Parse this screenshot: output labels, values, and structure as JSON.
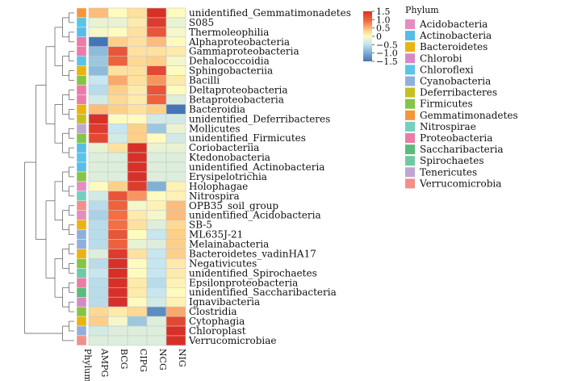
{
  "chart_data": {
    "type": "heatmap",
    "columns": [
      "AMPG",
      "BCG",
      "CIPG",
      "NCG",
      "NIG"
    ],
    "annotation_label": "Phylum",
    "rows": [
      {
        "label": "unidentified_Gemmatimonadetes",
        "phylum": "Gemmatimonadetes",
        "values": [
          0.6,
          0.0,
          0.3,
          1.5,
          0.0
        ]
      },
      {
        "label": "S085",
        "phylum": "Chloroflexi",
        "values": [
          -0.2,
          -0.2,
          0.2,
          1.4,
          -0.2
        ]
      },
      {
        "label": "Thermoleophilia",
        "phylum": "Actinobacteria",
        "values": [
          -0.1,
          0.0,
          0.3,
          1.2,
          -0.1
        ]
      },
      {
        "label": "Alphaproteobacteria",
        "phylum": "Proteobacteria",
        "values": [
          -1.6,
          0.5,
          0.3,
          0.6,
          0.0
        ]
      },
      {
        "label": "Gammaproteobacteria",
        "phylum": "Proteobacteria",
        "values": [
          -0.9,
          1.2,
          0.3,
          0.3,
          0.2
        ]
      },
      {
        "label": "Dehalococcoidia",
        "phylum": "Chloroflexi",
        "values": [
          -0.8,
          1.1,
          0.4,
          0.5,
          -0.1
        ]
      },
      {
        "label": "Sphingobacteriia",
        "phylum": "Bacteroidetes",
        "values": [
          -0.9,
          0.3,
          0.3,
          1.3,
          0.0
        ]
      },
      {
        "label": "Bacilli",
        "phylum": "Firmicutes",
        "values": [
          -0.5,
          0.7,
          0.3,
          0.8,
          0.2
        ]
      },
      {
        "label": "Deltaproteobacteria",
        "phylum": "Proteobacteria",
        "values": [
          -0.6,
          0.5,
          0.2,
          1.2,
          0.0
        ]
      },
      {
        "label": "Betaproteobacteria",
        "phylum": "Proteobacteria",
        "values": [
          -0.4,
          0.4,
          0.2,
          1.1,
          -0.3
        ]
      },
      {
        "label": "Bacteroidia",
        "phylum": "Bacteroidetes",
        "values": [
          0.6,
          0.5,
          0.3,
          0.5,
          -1.7
        ]
      },
      {
        "label": "unidentified_Deferribacteres",
        "phylum": "Deferribacteres",
        "values": [
          1.6,
          0.0,
          0.0,
          -0.4,
          -0.4
        ]
      },
      {
        "label": "Mollicutes",
        "phylum": "Tenericutes",
        "values": [
          1.4,
          -0.5,
          0.5,
          -0.8,
          -0.2
        ]
      },
      {
        "label": "unidentified_Firmicutes",
        "phylum": "Firmicutes",
        "values": [
          1.3,
          -0.4,
          0.5,
          0.0,
          -0.4
        ]
      },
      {
        "label": "Coriobacteriia",
        "phylum": "Actinobacteria",
        "values": [
          -0.2,
          0.3,
          1.5,
          -0.2,
          -0.2
        ]
      },
      {
        "label": "Ktedonobacteria",
        "phylum": "Chloroflexi",
        "values": [
          -0.3,
          -0.3,
          1.6,
          -0.3,
          -0.3
        ]
      },
      {
        "label": "unidentified_Actinobacteria",
        "phylum": "Actinobacteria",
        "values": [
          -0.3,
          -0.3,
          1.6,
          -0.3,
          -0.3
        ]
      },
      {
        "label": "Erysipelotrichia",
        "phylum": "Firmicutes",
        "values": [
          -0.3,
          -0.3,
          1.6,
          -0.3,
          -0.3
        ]
      },
      {
        "label": "Holophagae",
        "phylum": "Acidobacteria",
        "values": [
          0.0,
          0.5,
          1.4,
          -1.0,
          0.1
        ]
      },
      {
        "label": "Nitrospira",
        "phylum": "Nitrospirae",
        "values": [
          -0.4,
          1.2,
          0.8,
          0.0,
          0.1
        ]
      },
      {
        "label": "OPB35_soil_group",
        "phylum": "Verrucomicrobia",
        "values": [
          -0.6,
          1.1,
          -0.1,
          0.1,
          0.6
        ]
      },
      {
        "label": "unidentified_Acidobacteria",
        "phylum": "Acidobacteria",
        "values": [
          -0.7,
          1.0,
          0.2,
          -0.1,
          0.6
        ]
      },
      {
        "label": "SB-5",
        "phylum": "Bacteroidetes",
        "values": [
          -0.6,
          1.0,
          0.3,
          -0.3,
          0.4
        ]
      },
      {
        "label": "ML635J-21",
        "phylum": "Cyanobacteria",
        "values": [
          -0.6,
          1.2,
          0.0,
          -0.5,
          0.5
        ]
      },
      {
        "label": "Melainabacteria",
        "phylum": "Cyanobacteria",
        "values": [
          -0.6,
          1.1,
          -0.2,
          -0.3,
          0.5
        ]
      },
      {
        "label": "Bacteroidetes_vadinHA17",
        "phylum": "Bacteroidetes",
        "values": [
          -0.3,
          1.4,
          0.3,
          -0.5,
          0.5
        ]
      },
      {
        "label": "Negativicutes",
        "phylum": "Firmicutes",
        "values": [
          -0.6,
          1.5,
          0.0,
          -0.5,
          0.2
        ]
      },
      {
        "label": "unidentified_Spirochaetes",
        "phylum": "Spirochaetes",
        "values": [
          -0.5,
          1.5,
          0.0,
          -0.5,
          0.2
        ]
      },
      {
        "label": "Epsilonproteobacteria",
        "phylum": "Proteobacteria",
        "values": [
          -0.6,
          1.5,
          0.2,
          -0.6,
          0.1
        ]
      },
      {
        "label": "unidentified_Saccharibacteria",
        "phylum": "Saccharibacteria",
        "values": [
          -0.6,
          1.5,
          0.2,
          -0.5,
          0.0
        ]
      },
      {
        "label": "Ignavibacteria",
        "phylum": "Chlorobi",
        "values": [
          -0.6,
          1.5,
          0.0,
          -0.4,
          0.1
        ]
      },
      {
        "label": "Clostridia",
        "phylum": "Firmicutes",
        "values": [
          0.4,
          0.2,
          0.4,
          -1.3,
          0.7
        ]
      },
      {
        "label": "Cytophagia",
        "phylum": "Bacteroidetes",
        "values": [
          0.5,
          -0.1,
          -0.8,
          -0.3,
          1.3
        ]
      },
      {
        "label": "Chloroplast",
        "phylum": "Cyanobacteria",
        "values": [
          -0.4,
          -0.3,
          -0.3,
          -0.3,
          1.6
        ]
      },
      {
        "label": "Verrucomicrobiae",
        "phylum": "Verrucomicrobia",
        "values": [
          -0.3,
          -0.3,
          -0.3,
          -0.3,
          1.6
        ]
      }
    ],
    "color_scale": {
      "ticks": [
        "1.5",
        "1.0",
        "0.5",
        "0",
        "−0.5",
        "−1.0",
        "−1.5"
      ],
      "tick_values": [
        1.5,
        1.0,
        0.5,
        0,
        -0.5,
        -1.0,
        -1.5
      ],
      "low_color": "#4575b4",
      "mid_color": "#fffbbf",
      "high_color": "#d73027"
    },
    "legend": {
      "title": "Phylum",
      "items": [
        {
          "name": "Acidobacteria",
          "color": "#e58cc0"
        },
        {
          "name": "Actinobacteria",
          "color": "#57bde6"
        },
        {
          "name": "Bacteroidetes",
          "color": "#e9b312"
        },
        {
          "name": "Chlorobi",
          "color": "#d58ac6"
        },
        {
          "name": "Chloroflexi",
          "color": "#5ac4e8"
        },
        {
          "name": "Cyanobacteria",
          "color": "#8fb0dc"
        },
        {
          "name": "Deferribacteres",
          "color": "#c7be22"
        },
        {
          "name": "Firmicutes",
          "color": "#86c445"
        },
        {
          "name": "Gemmatimonadetes",
          "color": "#f3963a"
        },
        {
          "name": "Nitrospirae",
          "color": "#74cfc0"
        },
        {
          "name": "Proteobacteria",
          "color": "#ea7ca8"
        },
        {
          "name": "Saccharibacteria",
          "color": "#5cba7a"
        },
        {
          "name": "Spirochaetes",
          "color": "#70c9a6"
        },
        {
          "name": "Tenericutes",
          "color": "#bfa6d3"
        },
        {
          "name": "Verrucomicrobia",
          "color": "#ef9089"
        }
      ]
    },
    "dendrogram": "left",
    "grid": true
  }
}
